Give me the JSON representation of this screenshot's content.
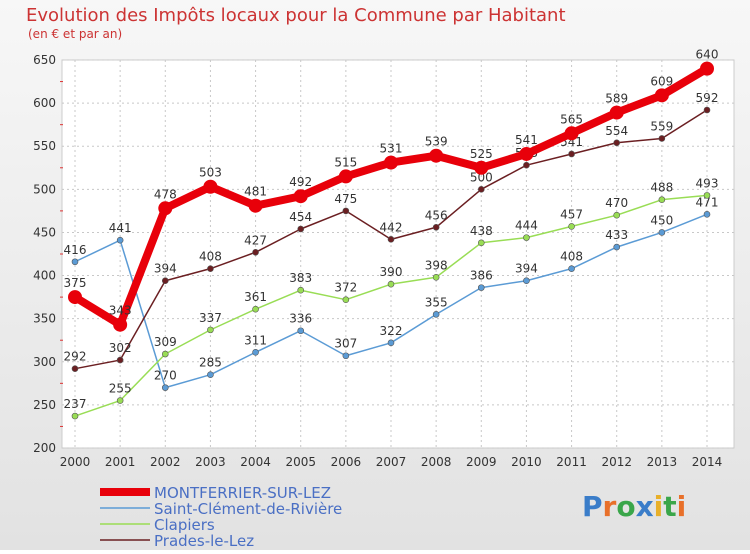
{
  "chart_data": {
    "type": "line",
    "title": "Evolution des Impôts locaux pour la Commune par Habitant",
    "subtitle": "(en € et par an)",
    "xlabel": "",
    "ylabel": "",
    "ylim": [
      200,
      650
    ],
    "y_ticks": [
      200,
      250,
      300,
      350,
      400,
      450,
      500,
      550,
      600,
      650
    ],
    "grid": true,
    "legend_position": "bottom-left",
    "categories": [
      "2000",
      "2001",
      "2002",
      "2003",
      "2004",
      "2005",
      "2006",
      "2007",
      "2008",
      "2009",
      "2010",
      "2011",
      "2012",
      "2013",
      "2014"
    ],
    "series": [
      {
        "name": "MONTFERRIER-SUR-LEZ",
        "color": "#e8000a",
        "emphasis": true,
        "values": [
          375,
          343,
          478,
          503,
          481,
          492,
          515,
          531,
          539,
          525,
          541,
          565,
          589,
          609,
          640
        ]
      },
      {
        "name": "Saint-Clément-de-Rivière",
        "color": "#5b9bd5",
        "values": [
          416,
          441,
          270,
          285,
          311,
          336,
          307,
          322,
          355,
          386,
          394,
          408,
          433,
          450,
          471
        ]
      },
      {
        "name": "Clapiers",
        "color": "#99dd55",
        "values": [
          237,
          255,
          309,
          337,
          361,
          383,
          372,
          390,
          398,
          438,
          444,
          457,
          470,
          488,
          493
        ]
      },
      {
        "name": "Prades-le-Lez",
        "color": "#6b1f22",
        "values": [
          292,
          302,
          394,
          408,
          427,
          454,
          475,
          442,
          456,
          500,
          528,
          541,
          554,
          559,
          592
        ]
      }
    ]
  },
  "logo": {
    "text": "Proxiti",
    "letter_colors": [
      "#3a7dc9",
      "#e8702a",
      "#3aa64a",
      "#3a7dc9",
      "#e8b02a",
      "#3aa64a",
      "#e8702a"
    ]
  }
}
